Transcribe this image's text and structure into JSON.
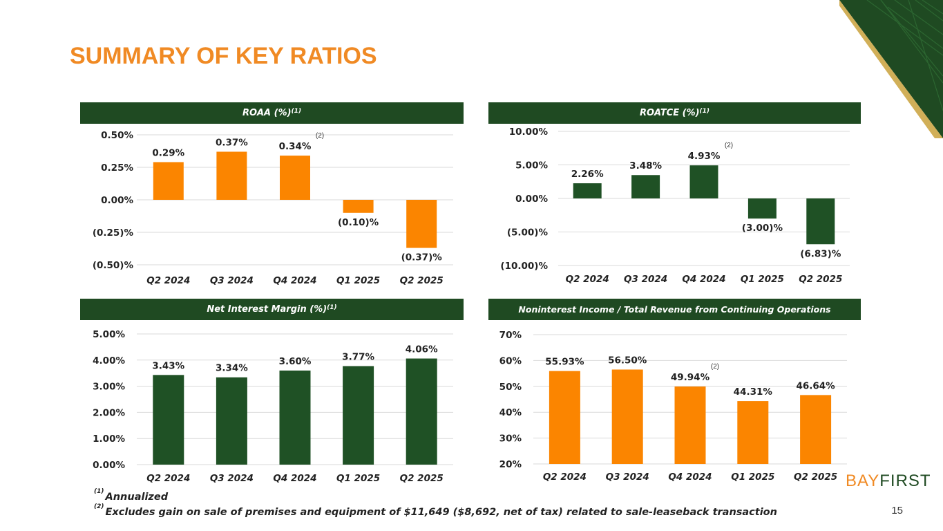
{
  "slide": {
    "title": "SUMMARY OF KEY RATIOS",
    "page_number": "15",
    "logo": {
      "part1": "BAY",
      "part2": "FIRST"
    }
  },
  "panels": {
    "roaa": {
      "title": "ROAA (%)",
      "sup": "(1)"
    },
    "roatce": {
      "title": "ROATCE (%)",
      "sup": "(1)"
    },
    "nim": {
      "title": "Net Interest Margin (%)",
      "sup": "(1)"
    },
    "nonint": {
      "title": "Noninterest Income / Total Revenue from Continuing Operations",
      "sup": ""
    }
  },
  "footnotes": [
    {
      "marker": "(1)",
      "text": "Annualized"
    },
    {
      "marker": "(2)",
      "text": "Excludes gain on sale of premises and equipment of $11,649 ($8,692, net of tax) related to sale-leaseback transaction"
    }
  ],
  "colors": {
    "orange": "#fb8500",
    "green": "#1f5125",
    "header": "#1f4a22",
    "title": "#f08a24"
  },
  "chart_data": [
    {
      "id": "roaa",
      "type": "bar",
      "title": "ROAA (%)(1)",
      "categories": [
        "Q2 2024",
        "Q3 2024",
        "Q4 2024",
        "Q1 2025",
        "Q2 2025"
      ],
      "values": [
        0.29,
        0.37,
        0.34,
        -0.1,
        -0.37
      ],
      "data_labels": [
        "0.29%",
        "0.37%",
        "0.34%",
        "(0.10)%",
        "(0.37)%"
      ],
      "yticks": [
        0.5,
        0.25,
        0.0,
        -0.25,
        -0.5
      ],
      "ytick_labels": [
        "0.50%",
        "0.25%",
        "0.00%",
        "(0.25)%",
        "(0.50)%"
      ],
      "ylim": [
        -0.5,
        0.5
      ],
      "color": "#fb8500",
      "annotation": {
        "text": "(2)",
        "category_index": 2
      }
    },
    {
      "id": "roatce",
      "type": "bar",
      "title": "ROATCE (%)(1)",
      "categories": [
        "Q2 2024",
        "Q3 2024",
        "Q4 2024",
        "Q1 2025",
        "Q2 2025"
      ],
      "values": [
        2.26,
        3.48,
        4.93,
        -3.0,
        -6.83
      ],
      "data_labels": [
        "2.26%",
        "3.48%",
        "4.93%",
        "(3.00)%",
        "(6.83)%"
      ],
      "yticks": [
        10,
        5,
        0,
        -5,
        -10
      ],
      "ytick_labels": [
        "10.00%",
        "5.00%",
        "0.00%",
        "(5.00)%",
        "(10.00)%"
      ],
      "ylim": [
        -10,
        10
      ],
      "color": "#1f5125",
      "annotation": {
        "text": "(2)",
        "category_index": 2
      }
    },
    {
      "id": "nim",
      "type": "bar",
      "title": "Net Interest Margin (%)(1)",
      "categories": [
        "Q2 2024",
        "Q3 2024",
        "Q4 2024",
        "Q1 2025",
        "Q2 2025"
      ],
      "values": [
        3.43,
        3.34,
        3.6,
        3.77,
        4.06
      ],
      "data_labels": [
        "3.43%",
        "3.34%",
        "3.60%",
        "3.77%",
        "4.06%"
      ],
      "yticks": [
        5,
        4,
        3,
        2,
        1,
        0
      ],
      "ytick_labels": [
        "5.00%",
        "4.00%",
        "3.00%",
        "2.00%",
        "1.00%",
        "0.00%"
      ],
      "ylim": [
        0,
        5
      ],
      "color": "#1f5125",
      "annotation": null
    },
    {
      "id": "nonint",
      "type": "bar",
      "title": "Noninterest Income / Total Revenue from Continuing Operations",
      "categories": [
        "Q2 2024",
        "Q3 2024",
        "Q4 2024",
        "Q1 2025",
        "Q2 2025"
      ],
      "values": [
        55.93,
        56.5,
        49.94,
        44.31,
        46.64
      ],
      "data_labels": [
        "55.93%",
        "56.50%",
        "49.94%",
        "44.31%",
        "46.64%"
      ],
      "yticks": [
        70,
        60,
        50,
        40,
        30,
        20
      ],
      "ytick_labels": [
        "70%",
        "60%",
        "50%",
        "40%",
        "30%",
        "20%"
      ],
      "ylim": [
        20,
        70
      ],
      "color": "#fb8500",
      "annotation": {
        "text": "(2)",
        "category_index": 2
      }
    }
  ]
}
